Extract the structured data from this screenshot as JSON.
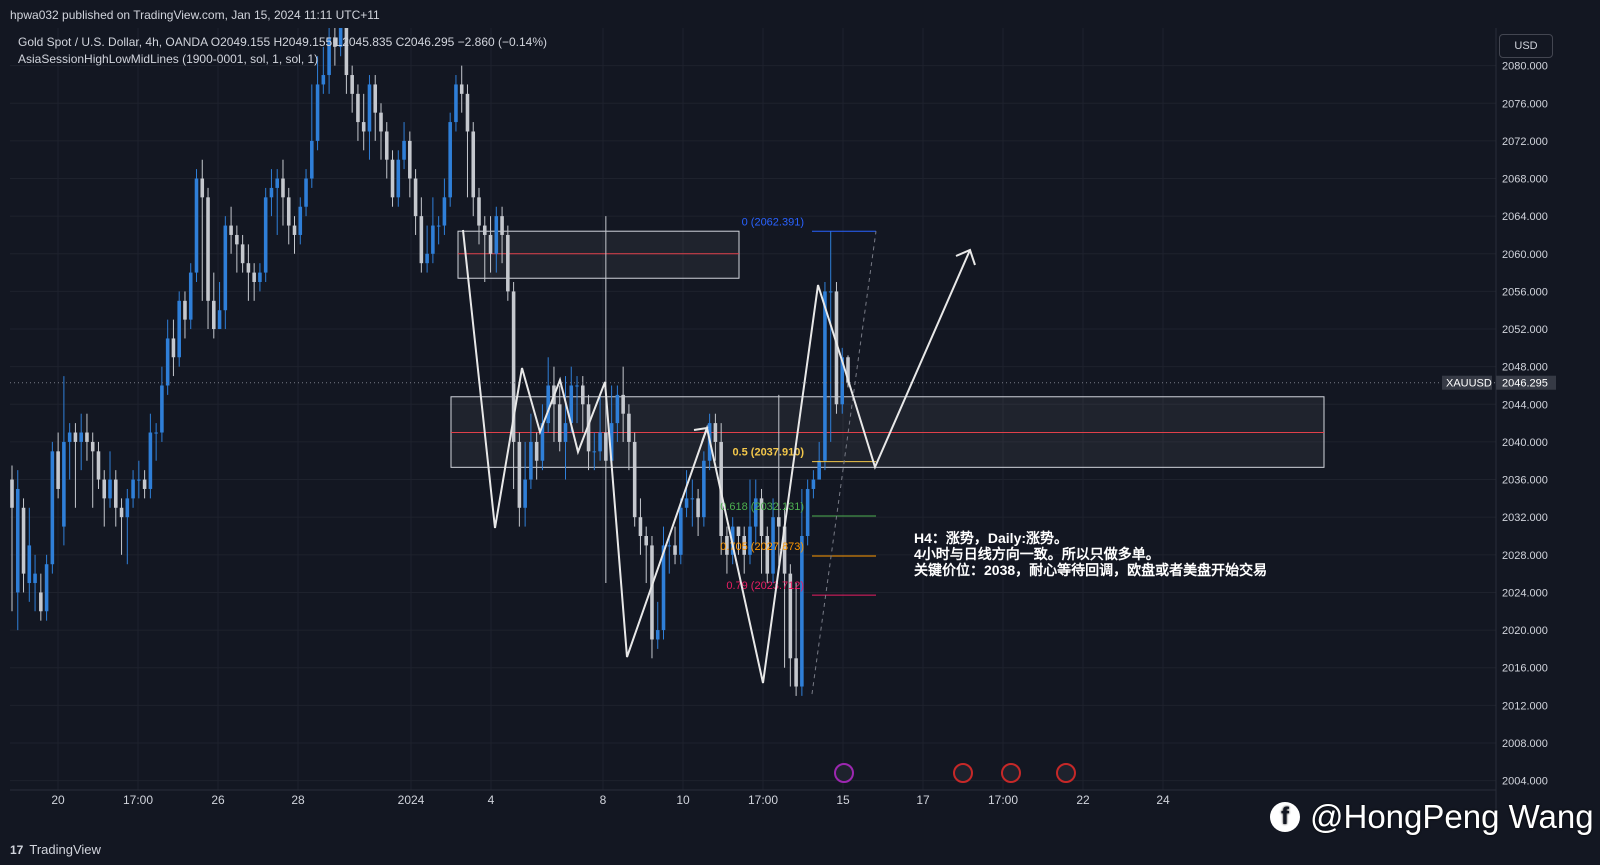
{
  "header": {
    "published_text": "hpwa032 published on TradingView.com, Jan 15, 2024 11:11 UTC+11"
  },
  "legend": {
    "symbol_line": "Gold Spot / U.S. Dollar, 4h, OANDA  O2049.155  H2049.155  L2045.835  C2046.295  −2.860 (−0.14%)",
    "indicator_line": "AsiaSessionHighLowMidLines (1900-0001, sol, 1, sol, 1)"
  },
  "currency_label": "USD",
  "footer": {
    "brand": "TradingView"
  },
  "watermark": {
    "text": "@HongPeng Wang"
  },
  "annotation": {
    "lines": [
      "H4：涨势，Daily:涨势。",
      "4小时与日线方向一致。所以只做多单。",
      "关键价位：2038，耐心等待回调，欧盘或者美盘开始交易"
    ]
  },
  "colors": {
    "background": "#131722",
    "up_candle": "#2f7fd8",
    "down_candle": "#c5c8ce",
    "grid": "#1e222d",
    "axis_text": "#d1d4dc",
    "zone_border": "#d1d4dc",
    "mid_line": "#e0404a",
    "fib_0": "#2962ff",
    "fib_05": "#f3c74a",
    "fib_0618": "#4caf50",
    "fib_0705": "#ff9800",
    "fib_079": "#e91e63"
  },
  "chart_data": {
    "type": "candlestick",
    "symbol": "XAUUSD",
    "last_price": 2046.295,
    "last_price_label": "2046.295",
    "timeframe": "4h",
    "ylim": [
      2003,
      2084
    ],
    "y_ticks": [
      "2080.000",
      "2076.000",
      "2072.000",
      "2068.000",
      "2064.000",
      "2060.000",
      "2056.000",
      "2052.000",
      "2048.000",
      "2044.000",
      "2040.000",
      "2036.000",
      "2032.000",
      "2028.000",
      "2024.000",
      "2020.000",
      "2016.000",
      "2012.000",
      "2008.000",
      "2004.000"
    ],
    "x_ticks": [
      "20",
      "17:00",
      "26",
      "28",
      "2024",
      "4",
      "8",
      "10",
      "17:00",
      "15",
      "17",
      "17:00",
      "22",
      "24"
    ],
    "fib_labels": [
      {
        "level": 0,
        "price": 2062.391,
        "text": "0 (2062.391)"
      },
      {
        "level": 0.5,
        "price": 2037.91,
        "text": "0.5 (2037.910)"
      },
      {
        "level": 0.618,
        "price": 2032.131,
        "text": "0.618 (2032.131)"
      },
      {
        "level": 0.705,
        "price": 2027.873,
        "text": "0.705 (2027.873)"
      },
      {
        "level": 0.79,
        "price": 2023.712,
        "text": "0.79 (2023.712)"
      }
    ],
    "zones": [
      {
        "name": "upper-supply-zone",
        "top": 2062.4,
        "bottom": 2057.4,
        "mid": 2060.0
      },
      {
        "name": "key-demand-zone",
        "top": 2044.8,
        "bottom": 2037.3,
        "mid": 2041.0
      }
    ],
    "candles": [
      [
        2036.0,
        2033.0,
        2037.5,
        2022.0
      ],
      [
        2024.0,
        2035.0,
        2037.0,
        2020.0
      ],
      [
        2033.0,
        2026.0,
        2034.0,
        2024.0
      ],
      [
        2025.0,
        2029.0,
        2033.0,
        2023.0
      ],
      [
        2025.0,
        2026.0,
        2028.0,
        2022.0
      ],
      [
        2024.0,
        2022.0,
        2026.0,
        2021.0
      ],
      [
        2022.0,
        2027.0,
        2028.0,
        2021.0
      ],
      [
        2027.0,
        2039.0,
        2040.0,
        2026.0
      ],
      [
        2039.0,
        2035.0,
        2041.0,
        2034.0
      ],
      [
        2031.0,
        2040.0,
        2047.0,
        2029.0
      ],
      [
        2040.0,
        2041.0,
        2042.0,
        2036.0
      ],
      [
        2041.0,
        2040.0,
        2042.0,
        2033.0
      ],
      [
        2040.0,
        2041.0,
        2043.0,
        2037.0
      ],
      [
        2041.0,
        2040.0,
        2043.0,
        2038.0
      ],
      [
        2040.0,
        2039.0,
        2041.0,
        2033.0
      ],
      [
        2039.0,
        2036.0,
        2040.0,
        2035.0
      ],
      [
        2036.0,
        2034.0,
        2037.0,
        2031.0
      ],
      [
        2034.0,
        2036.0,
        2039.0,
        2033.0
      ],
      [
        2036.0,
        2033.0,
        2037.0,
        2031.0
      ],
      [
        2033.0,
        2032.0,
        2034.0,
        2028.0
      ],
      [
        2032.0,
        2034.0,
        2035.0,
        2027.0
      ],
      [
        2034.0,
        2036.0,
        2037.0,
        2033.0
      ],
      [
        2036.0,
        2036.0,
        2038.0,
        2034.0
      ],
      [
        2036.0,
        2035.0,
        2037.0,
        2034.0
      ],
      [
        2035.0,
        2041.0,
        2043.0,
        2034.0
      ],
      [
        2041.0,
        2041.0,
        2042.0,
        2038.0
      ],
      [
        2041.0,
        2046.0,
        2048.0,
        2040.0
      ],
      [
        2046.0,
        2051.0,
        2053.0,
        2045.0
      ],
      [
        2051.0,
        2049.0,
        2053.0,
        2047.0
      ],
      [
        2049.0,
        2055.0,
        2056.0,
        2048.0
      ],
      [
        2055.0,
        2053.0,
        2056.0,
        2051.0
      ],
      [
        2053.0,
        2058.0,
        2059.0,
        2052.0
      ],
      [
        2058.0,
        2068.0,
        2069.0,
        2057.0
      ],
      [
        2068.0,
        2066.0,
        2070.0,
        2055.0
      ],
      [
        2066.0,
        2055.0,
        2067.0,
        2052.0
      ],
      [
        2055.0,
        2052.0,
        2058.0,
        2051.0
      ],
      [
        2052.0,
        2054.0,
        2057.0,
        2052.0
      ],
      [
        2054.0,
        2063.0,
        2064.0,
        2052.0
      ],
      [
        2063.0,
        2062.0,
        2065.0,
        2060.0
      ],
      [
        2062.0,
        2061.0,
        2063.0,
        2058.0
      ],
      [
        2061.0,
        2059.0,
        2062.0,
        2058.0
      ],
      [
        2059.0,
        2058.0,
        2061.0,
        2055.0
      ],
      [
        2058.0,
        2057.0,
        2059.0,
        2055.0
      ],
      [
        2057.0,
        2058.0,
        2059.0,
        2056.0
      ],
      [
        2058.0,
        2066.0,
        2067.0,
        2057.0
      ],
      [
        2066.0,
        2067.0,
        2069.0,
        2064.0
      ],
      [
        2067.0,
        2068.0,
        2069.0,
        2062.0
      ],
      [
        2068.0,
        2066.0,
        2070.0,
        2063.0
      ],
      [
        2066.0,
        2063.0,
        2067.0,
        2061.0
      ],
      [
        2063.0,
        2062.0,
        2064.0,
        2060.0
      ],
      [
        2062.0,
        2065.0,
        2066.0,
        2061.0
      ],
      [
        2065.0,
        2068.0,
        2069.0,
        2064.0
      ],
      [
        2068.0,
        2072.0,
        2078.0,
        2067.0
      ],
      [
        2072.0,
        2078.0,
        2081.0,
        2071.0
      ],
      [
        2078.0,
        2079.0,
        2082.0,
        2077.0
      ],
      [
        2079.0,
        2083.0,
        2084.0,
        2077.0
      ],
      [
        2083.0,
        2082.0,
        2084.0,
        2080.0
      ],
      [
        2082.0,
        2084.0,
        2084.0,
        2081.0
      ],
      [
        2084.0,
        2079.0,
        2084.0,
        2077.0
      ],
      [
        2079.0,
        2077.0,
        2080.0,
        2075.0
      ],
      [
        2077.0,
        2074.0,
        2078.0,
        2072.0
      ],
      [
        2074.0,
        2073.0,
        2077.0,
        2071.0
      ],
      [
        2073.0,
        2078.0,
        2079.0,
        2070.0
      ],
      [
        2078.0,
        2075.0,
        2079.0,
        2072.0
      ],
      [
        2075.0,
        2073.0,
        2076.0,
        2070.0
      ],
      [
        2073.0,
        2070.0,
        2074.0,
        2068.0
      ],
      [
        2070.0,
        2066.0,
        2071.0,
        2065.0
      ],
      [
        2066.0,
        2070.0,
        2071.0,
        2065.0
      ],
      [
        2070.0,
        2072.0,
        2074.0,
        2069.0
      ],
      [
        2072.0,
        2068.0,
        2073.0,
        2066.0
      ],
      [
        2068.0,
        2064.0,
        2069.0,
        2062.0
      ],
      [
        2064.0,
        2059.0,
        2066.0,
        2058.0
      ],
      [
        2059.0,
        2060.0,
        2063.0,
        2058.0
      ],
      [
        2060.0,
        2063.0,
        2066.0,
        2059.0
      ],
      [
        2063.0,
        2063.0,
        2064.0,
        2061.0
      ],
      [
        2063.0,
        2066.0,
        2068.0,
        2062.0
      ],
      [
        2066.0,
        2074.0,
        2075.0,
        2065.0
      ],
      [
        2074.0,
        2078.0,
        2079.0,
        2073.0
      ],
      [
        2078.0,
        2077.0,
        2080.0,
        2075.0
      ],
      [
        2077.0,
        2073.0,
        2078.0,
        2066.0
      ],
      [
        2073.0,
        2066.0,
        2074.0,
        2064.0
      ],
      [
        2066.0,
        2063.0,
        2067.0,
        2061.0
      ],
      [
        2063.0,
        2062.0,
        2064.0,
        2057.0
      ],
      [
        2062.0,
        2060.0,
        2064.0,
        2058.0
      ],
      [
        2060.0,
        2064.0,
        2065.0,
        2058.0
      ],
      [
        2064.0,
        2062.0,
        2065.0,
        2059.0
      ],
      [
        2062.0,
        2056.0,
        2063.0,
        2055.0
      ],
      [
        2056.0,
        2040.0,
        2057.0,
        2035.0
      ],
      [
        2040.0,
        2033.0,
        2041.0,
        2031.0
      ],
      [
        2033.0,
        2036.0,
        2040.0,
        2031.0
      ],
      [
        2036.0,
        2040.0,
        2043.0,
        2035.0
      ],
      [
        2040.0,
        2038.0,
        2041.0,
        2036.0
      ],
      [
        2038.0,
        2042.0,
        2044.0,
        2037.0
      ],
      [
        2042.0,
        2046.0,
        2049.0,
        2041.0
      ],
      [
        2046.0,
        2044.0,
        2048.0,
        2040.0
      ],
      [
        2044.0,
        2040.0,
        2046.0,
        2039.0
      ],
      [
        2040.0,
        2042.0,
        2047.0,
        2036.0
      ],
      [
        2042.0,
        2046.0,
        2048.0,
        2041.0
      ],
      [
        2046.0,
        2046.0,
        2047.0,
        2042.0
      ],
      [
        2046.0,
        2044.0,
        2047.0,
        2041.0
      ],
      [
        2044.0,
        2039.0,
        2045.0,
        2037.0
      ],
      [
        2039.0,
        2039.0,
        2041.0,
        2037.0
      ],
      [
        2039.0,
        2041.0,
        2045.0,
        2038.0
      ],
      [
        2041.0,
        2038.0,
        2064.0,
        2025.0
      ],
      [
        2038.0,
        2042.0,
        2046.0,
        2037.0
      ],
      [
        2042.0,
        2045.0,
        2046.0,
        2040.0
      ],
      [
        2045.0,
        2043.0,
        2048.0,
        2040.0
      ],
      [
        2043.0,
        2040.0,
        2044.0,
        2037.0
      ],
      [
        2040.0,
        2032.0,
        2041.0,
        2031.0
      ],
      [
        2032.0,
        2030.0,
        2034.0,
        2028.0
      ],
      [
        2030.0,
        2029.0,
        2031.0,
        2025.0
      ],
      [
        2029.0,
        2019.0,
        2030.0,
        2017.0
      ],
      [
        2019.0,
        2020.0,
        2023.0,
        2018.0
      ],
      [
        2020.0,
        2029.0,
        2031.0,
        2019.0
      ],
      [
        2029.0,
        2029.0,
        2030.0,
        2026.0
      ],
      [
        2029.0,
        2028.0,
        2031.0,
        2027.0
      ],
      [
        2028.0,
        2033.0,
        2034.0,
        2027.0
      ],
      [
        2033.0,
        2034.0,
        2037.0,
        2032.0
      ],
      [
        2034.0,
        2034.0,
        2036.0,
        2031.0
      ],
      [
        2034.0,
        2032.0,
        2035.0,
        2030.0
      ],
      [
        2032.0,
        2038.0,
        2039.0,
        2031.0
      ],
      [
        2038.0,
        2042.0,
        2043.0,
        2037.0
      ],
      [
        2042.0,
        2040.0,
        2043.0,
        2038.0
      ],
      [
        2040.0,
        2030.0,
        2042.0,
        2028.0
      ],
      [
        2030.0,
        2028.0,
        2031.0,
        2026.0
      ],
      [
        2028.0,
        2031.0,
        2032.0,
        2027.0
      ],
      [
        2031.0,
        2030.0,
        2031.0,
        2028.0
      ],
      [
        2030.0,
        2028.0,
        2031.0,
        2026.0
      ],
      [
        2028.0,
        2031.0,
        2036.0,
        2027.0
      ],
      [
        2031.0,
        2034.0,
        2036.0,
        2029.0
      ],
      [
        2034.0,
        2030.0,
        2035.0,
        2026.0
      ],
      [
        2030.0,
        2026.0,
        2031.0,
        2025.0
      ],
      [
        2026.0,
        2032.0,
        2034.0,
        2025.0
      ],
      [
        2032.0,
        2031.0,
        2045.0,
        2027.0
      ],
      [
        2031.0,
        2026.0,
        2033.0,
        2016.0
      ],
      [
        2026.0,
        2017.0,
        2027.0,
        2014.0
      ],
      [
        2017.0,
        2014.0,
        2025.0,
        2013.0
      ],
      [
        2014.0,
        2030.0,
        2035.0,
        2013.0
      ],
      [
        2030.0,
        2035.0,
        2036.0,
        2029.0
      ],
      [
        2035.0,
        2036.0,
        2037.0,
        2034.0
      ],
      [
        2036.0,
        2038.0,
        2040.0,
        2036.0
      ],
      [
        2038.0,
        2056.0,
        2057.0,
        2037.0
      ],
      [
        2056.0,
        2056.0,
        2062.4,
        2040.0
      ],
      [
        2056.0,
        2044.0,
        2057.0,
        2043.0
      ],
      [
        2044.0,
        2049.0,
        2050.0,
        2043.0
      ],
      [
        2049.0,
        2046.3,
        2049.2,
        2045.8
      ]
    ]
  }
}
